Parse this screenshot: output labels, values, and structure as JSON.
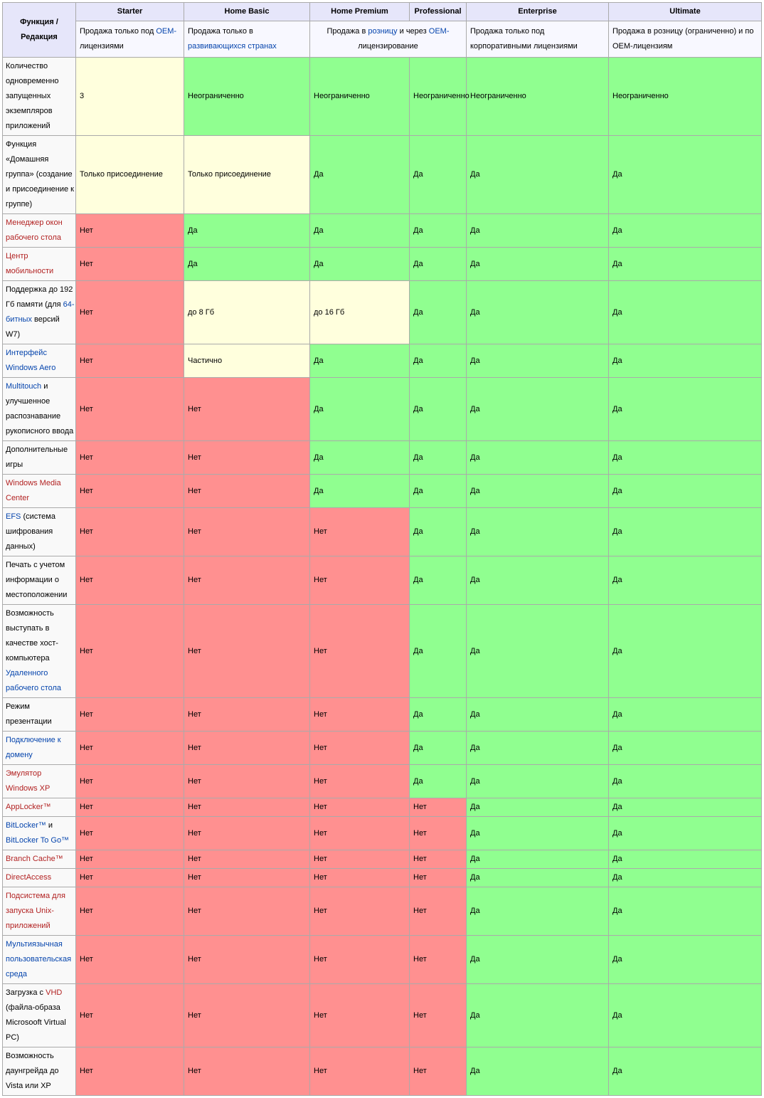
{
  "colors": {
    "header_bg": "#E6E6FA",
    "subheader_bg": "#F8F8FF",
    "feature_bg": "#F9F9F9",
    "yes_bg": "#90FF90",
    "no_bg": "#FF9090",
    "partial_bg": "#FFFFDD",
    "border": "#AAAAAA",
    "link_blue": "#0645AD",
    "link_red": "#B22222",
    "text": "#000000"
  },
  "table": {
    "corner_header": "Функция / Редакция",
    "editions": [
      "Starter",
      "Home Basic",
      "Home Premium",
      "Professional",
      "Enterprise",
      "Ultimate"
    ],
    "availability": [
      {
        "colspan": 1,
        "align": "left",
        "segments": [
          {
            "t": "Продажа только под "
          },
          {
            "t": "OEM-",
            "link": "blue"
          },
          {
            "t": "лицензиями"
          }
        ]
      },
      {
        "colspan": 1,
        "align": "left",
        "segments": [
          {
            "t": "Продажа только в "
          },
          {
            "t": "развивающихся странах",
            "link": "blue"
          }
        ]
      },
      {
        "colspan": 2,
        "align": "center",
        "segments": [
          {
            "t": "Продажа в "
          },
          {
            "t": "розницу",
            "link": "blue"
          },
          {
            "t": " и через "
          },
          {
            "t": "OEM-",
            "link": "blue"
          },
          {
            "t": "лицензирование"
          }
        ]
      },
      {
        "colspan": 1,
        "align": "left",
        "segments": [
          {
            "t": "Продажа только под корпоративными лицензиями"
          }
        ]
      },
      {
        "colspan": 1,
        "align": "left",
        "segments": [
          {
            "t": "Продажа в розницу (ограниченно) и по OEM-лицензиям"
          }
        ]
      }
    ],
    "rows": [
      {
        "feature": [
          {
            "t": "Количество одновременно запущенных экземпляров приложений"
          }
        ],
        "values": [
          {
            "text": "3",
            "status": "partial"
          },
          {
            "text": "Неограниченно",
            "status": "yes"
          },
          {
            "text": "Неограниченно",
            "status": "yes"
          },
          {
            "text": "Неограниченно",
            "status": "yes"
          },
          {
            "text": "Неограниченно",
            "status": "yes"
          },
          {
            "text": "Неограниченно",
            "status": "yes"
          }
        ]
      },
      {
        "feature": [
          {
            "t": "Функция «Домашняя группа» (создание и присоединение к группе)"
          }
        ],
        "values": [
          {
            "text": "Только присоединение",
            "status": "partial"
          },
          {
            "text": "Только присоединение",
            "status": "partial"
          },
          {
            "text": "Да",
            "status": "yes"
          },
          {
            "text": "Да",
            "status": "yes"
          },
          {
            "text": "Да",
            "status": "yes"
          },
          {
            "text": "Да",
            "status": "yes"
          }
        ]
      },
      {
        "feature": [
          {
            "t": "Менеджер окон рабочего стола",
            "link": "red"
          }
        ],
        "values": [
          {
            "text": "Нет",
            "status": "no"
          },
          {
            "text": "Да",
            "status": "yes"
          },
          {
            "text": "Да",
            "status": "yes"
          },
          {
            "text": "Да",
            "status": "yes"
          },
          {
            "text": "Да",
            "status": "yes"
          },
          {
            "text": "Да",
            "status": "yes"
          }
        ]
      },
      {
        "feature": [
          {
            "t": "Центр мобильности",
            "link": "red"
          }
        ],
        "values": [
          {
            "text": "Нет",
            "status": "no"
          },
          {
            "text": "Да",
            "status": "yes"
          },
          {
            "text": "Да",
            "status": "yes"
          },
          {
            "text": "Да",
            "status": "yes"
          },
          {
            "text": "Да",
            "status": "yes"
          },
          {
            "text": "Да",
            "status": "yes"
          }
        ]
      },
      {
        "feature": [
          {
            "t": "Поддержка до 192 Гб памяти (для "
          },
          {
            "t": "64-битных",
            "link": "blue"
          },
          {
            "t": " версий W7)"
          }
        ],
        "values": [
          {
            "text": "Нет",
            "status": "no"
          },
          {
            "text": "до 8 Гб",
            "status": "partial"
          },
          {
            "text": "до 16 Гб",
            "status": "partial"
          },
          {
            "text": "Да",
            "status": "yes"
          },
          {
            "text": "Да",
            "status": "yes"
          },
          {
            "text": "Да",
            "status": "yes"
          }
        ]
      },
      {
        "feature": [
          {
            "t": "Интерфейс Windows Aero",
            "link": "blue"
          }
        ],
        "values": [
          {
            "text": "Нет",
            "status": "no"
          },
          {
            "text": "Частично",
            "status": "partial"
          },
          {
            "text": "Да",
            "status": "yes"
          },
          {
            "text": "Да",
            "status": "yes"
          },
          {
            "text": "Да",
            "status": "yes"
          },
          {
            "text": "Да",
            "status": "yes"
          }
        ]
      },
      {
        "feature": [
          {
            "t": "Multitouch",
            "link": "blue"
          },
          {
            "t": " и улучшенное распознавание рукописного ввода"
          }
        ],
        "values": [
          {
            "text": "Нет",
            "status": "no"
          },
          {
            "text": "Нет",
            "status": "no"
          },
          {
            "text": "Да",
            "status": "yes"
          },
          {
            "text": "Да",
            "status": "yes"
          },
          {
            "text": "Да",
            "status": "yes"
          },
          {
            "text": "Да",
            "status": "yes"
          }
        ]
      },
      {
        "feature": [
          {
            "t": "Дополнительные игры"
          }
        ],
        "values": [
          {
            "text": "Нет",
            "status": "no"
          },
          {
            "text": "Нет",
            "status": "no"
          },
          {
            "text": "Да",
            "status": "yes"
          },
          {
            "text": "Да",
            "status": "yes"
          },
          {
            "text": "Да",
            "status": "yes"
          },
          {
            "text": "Да",
            "status": "yes"
          }
        ]
      },
      {
        "feature": [
          {
            "t": "Windows Media Center",
            "link": "red"
          }
        ],
        "values": [
          {
            "text": "Нет",
            "status": "no"
          },
          {
            "text": "Нет",
            "status": "no"
          },
          {
            "text": "Да",
            "status": "yes"
          },
          {
            "text": "Да",
            "status": "yes"
          },
          {
            "text": "Да",
            "status": "yes"
          },
          {
            "text": "Да",
            "status": "yes"
          }
        ]
      },
      {
        "feature": [
          {
            "t": "EFS",
            "link": "blue"
          },
          {
            "t": " (система шифрования данных)"
          }
        ],
        "values": [
          {
            "text": "Нет",
            "status": "no"
          },
          {
            "text": "Нет",
            "status": "no"
          },
          {
            "text": "Нет",
            "status": "no"
          },
          {
            "text": "Да",
            "status": "yes"
          },
          {
            "text": "Да",
            "status": "yes"
          },
          {
            "text": "Да",
            "status": "yes"
          }
        ]
      },
      {
        "feature": [
          {
            "t": "Печать с учетом информации о местоположении"
          }
        ],
        "values": [
          {
            "text": "Нет",
            "status": "no"
          },
          {
            "text": "Нет",
            "status": "no"
          },
          {
            "text": "Нет",
            "status": "no"
          },
          {
            "text": "Да",
            "status": "yes"
          },
          {
            "text": "Да",
            "status": "yes"
          },
          {
            "text": "Да",
            "status": "yes"
          }
        ]
      },
      {
        "feature": [
          {
            "t": "Возможность выступать в качестве хост-компьютера "
          },
          {
            "t": "Удаленного рабочего стола",
            "link": "blue"
          }
        ],
        "values": [
          {
            "text": "Нет",
            "status": "no"
          },
          {
            "text": "Нет",
            "status": "no"
          },
          {
            "text": "Нет",
            "status": "no"
          },
          {
            "text": "Да",
            "status": "yes"
          },
          {
            "text": "Да",
            "status": "yes"
          },
          {
            "text": "Да",
            "status": "yes"
          }
        ]
      },
      {
        "feature": [
          {
            "t": "Режим презентации"
          }
        ],
        "values": [
          {
            "text": "Нет",
            "status": "no"
          },
          {
            "text": "Нет",
            "status": "no"
          },
          {
            "text": "Нет",
            "status": "no"
          },
          {
            "text": "Да",
            "status": "yes"
          },
          {
            "text": "Да",
            "status": "yes"
          },
          {
            "text": "Да",
            "status": "yes"
          }
        ]
      },
      {
        "feature": [
          {
            "t": "Подключение к домену",
            "link": "blue"
          }
        ],
        "values": [
          {
            "text": "Нет",
            "status": "no"
          },
          {
            "text": "Нет",
            "status": "no"
          },
          {
            "text": "Нет",
            "status": "no"
          },
          {
            "text": "Да",
            "status": "yes"
          },
          {
            "text": "Да",
            "status": "yes"
          },
          {
            "text": "Да",
            "status": "yes"
          }
        ]
      },
      {
        "feature": [
          {
            "t": "Эмулятор Windows XP",
            "link": "red"
          }
        ],
        "values": [
          {
            "text": "Нет",
            "status": "no"
          },
          {
            "text": "Нет",
            "status": "no"
          },
          {
            "text": "Нет",
            "status": "no"
          },
          {
            "text": "Да",
            "status": "yes"
          },
          {
            "text": "Да",
            "status": "yes"
          },
          {
            "text": "Да",
            "status": "yes"
          }
        ]
      },
      {
        "feature": [
          {
            "t": "AppLocker™",
            "link": "red"
          }
        ],
        "values": [
          {
            "text": "Нет",
            "status": "no"
          },
          {
            "text": "Нет",
            "status": "no"
          },
          {
            "text": "Нет",
            "status": "no"
          },
          {
            "text": "Нет",
            "status": "no"
          },
          {
            "text": "Да",
            "status": "yes"
          },
          {
            "text": "Да",
            "status": "yes"
          }
        ]
      },
      {
        "feature": [
          {
            "t": "BitLocker™",
            "link": "blue"
          },
          {
            "t": " и "
          },
          {
            "t": "BitLocker To Go™",
            "link": "blue"
          }
        ],
        "values": [
          {
            "text": "Нет",
            "status": "no"
          },
          {
            "text": "Нет",
            "status": "no"
          },
          {
            "text": "Нет",
            "status": "no"
          },
          {
            "text": "Нет",
            "status": "no"
          },
          {
            "text": "Да",
            "status": "yes"
          },
          {
            "text": "Да",
            "status": "yes"
          }
        ]
      },
      {
        "feature": [
          {
            "t": "Branch Cache™",
            "link": "red"
          }
        ],
        "values": [
          {
            "text": "Нет",
            "status": "no"
          },
          {
            "text": "Нет",
            "status": "no"
          },
          {
            "text": "Нет",
            "status": "no"
          },
          {
            "text": "Нет",
            "status": "no"
          },
          {
            "text": "Да",
            "status": "yes"
          },
          {
            "text": "Да",
            "status": "yes"
          }
        ]
      },
      {
        "feature": [
          {
            "t": "DirectAccess",
            "link": "red"
          }
        ],
        "values": [
          {
            "text": "Нет",
            "status": "no"
          },
          {
            "text": "Нет",
            "status": "no"
          },
          {
            "text": "Нет",
            "status": "no"
          },
          {
            "text": "Нет",
            "status": "no"
          },
          {
            "text": "Да",
            "status": "yes"
          },
          {
            "text": "Да",
            "status": "yes"
          }
        ]
      },
      {
        "feature": [
          {
            "t": "Подсистема для запуска Unix-приложений",
            "link": "red"
          }
        ],
        "values": [
          {
            "text": "Нет",
            "status": "no"
          },
          {
            "text": "Нет",
            "status": "no"
          },
          {
            "text": "Нет",
            "status": "no"
          },
          {
            "text": "Нет",
            "status": "no"
          },
          {
            "text": "Да",
            "status": "yes"
          },
          {
            "text": "Да",
            "status": "yes"
          }
        ]
      },
      {
        "feature": [
          {
            "t": "Мультиязычная пользовательская среда",
            "link": "blue"
          }
        ],
        "values": [
          {
            "text": "Нет",
            "status": "no"
          },
          {
            "text": "Нет",
            "status": "no"
          },
          {
            "text": "Нет",
            "status": "no"
          },
          {
            "text": "Нет",
            "status": "no"
          },
          {
            "text": "Да",
            "status": "yes"
          },
          {
            "text": "Да",
            "status": "yes"
          }
        ]
      },
      {
        "feature": [
          {
            "t": "Загрузка с "
          },
          {
            "t": "VHD",
            "link": "red"
          },
          {
            "t": " (файла-образа Microsooft Virtual PC)"
          }
        ],
        "values": [
          {
            "text": "Нет",
            "status": "no"
          },
          {
            "text": "Нет",
            "status": "no"
          },
          {
            "text": "Нет",
            "status": "no"
          },
          {
            "text": "Нет",
            "status": "no"
          },
          {
            "text": "Да",
            "status": "yes"
          },
          {
            "text": "Да",
            "status": "yes"
          }
        ]
      },
      {
        "feature": [
          {
            "t": "Возможность даунгрейда до Vista или XP"
          }
        ],
        "values": [
          {
            "text": "Нет",
            "status": "no"
          },
          {
            "text": "Нет",
            "status": "no"
          },
          {
            "text": "Нет",
            "status": "no"
          },
          {
            "text": "Нет",
            "status": "no"
          },
          {
            "text": "Да",
            "status": "yes"
          },
          {
            "text": "Да",
            "status": "yes"
          }
        ]
      }
    ]
  }
}
